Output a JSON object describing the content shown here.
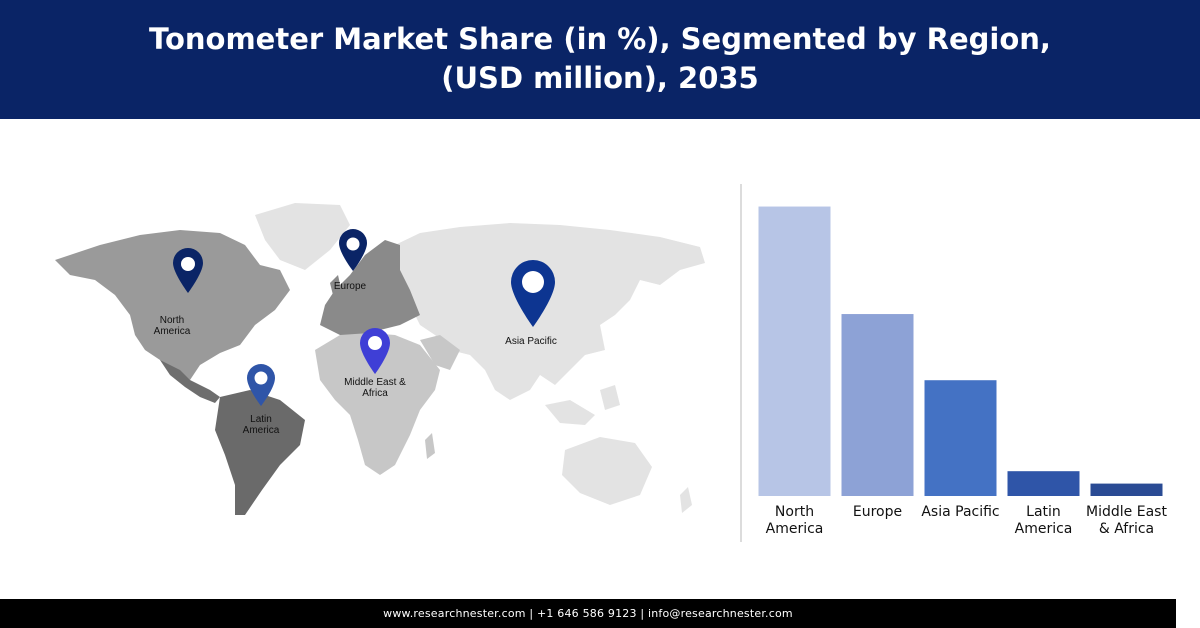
{
  "title": "Tonometer Market Share (in %), Segmented by Region, (USD million), 2035",
  "map": {
    "pins": [
      {
        "name": "north-america",
        "label": "North\nAmerica",
        "color": "#0a2466"
      },
      {
        "name": "europe",
        "label": "Europe",
        "color": "#0a2466"
      },
      {
        "name": "asia-pacific",
        "label": "Asia Pacific",
        "color": "#0d3591"
      },
      {
        "name": "middle-east-africa",
        "label": "Middle East &\nAfrica",
        "color": "#3f3fd6"
      },
      {
        "name": "latin-america",
        "label": "Latin\nAmerica",
        "color": "#2f55a8"
      }
    ]
  },
  "chart_data": {
    "type": "bar",
    "categories": [
      "North\nAmerica",
      "Europe",
      "Asia Pacific",
      "Latin\nAmerica",
      "Middle East\n& Africa"
    ],
    "values": [
      35,
      22,
      14,
      3,
      1.5
    ],
    "colors": [
      "#b7c5e6",
      "#8da2d6",
      "#4472c4",
      "#2f55a8",
      "#2a4b94"
    ],
    "title": "",
    "xlabel": "",
    "ylabel": "",
    "ylim": [
      0,
      37
    ],
    "grid": false,
    "legend": "none"
  },
  "footer": {
    "text": "www.researchnester.com  |  +1 646 586 9123  |  info@researchnester.com"
  }
}
